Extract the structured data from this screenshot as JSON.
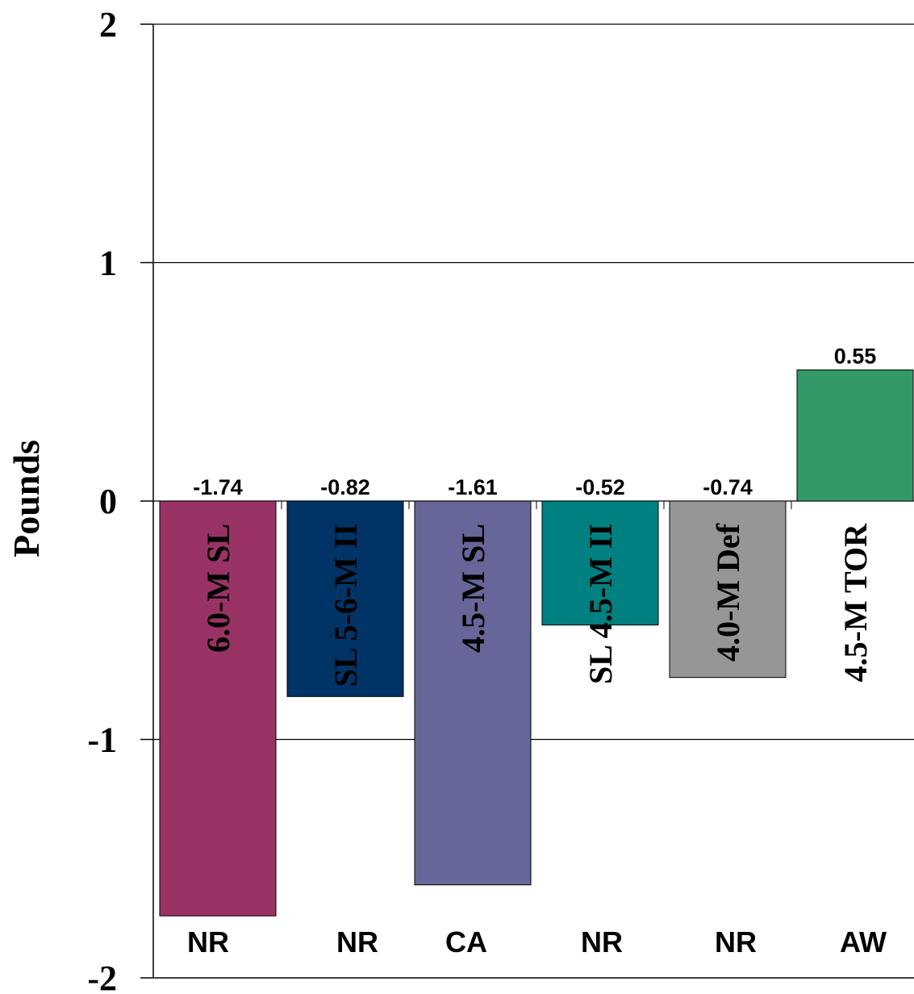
{
  "chart_data": {
    "type": "bar",
    "ylabel": "Pounds",
    "ylim": [
      -2,
      2
    ],
    "yticks": [
      "2",
      "1",
      "0",
      "-1",
      "-2"
    ],
    "grid": true,
    "categories": [
      "6.0-M SL",
      "SL 5-6-M II",
      "4.5-M SL",
      "SL 4.5-M II",
      "4.0-M Def",
      "4.5-M TOR"
    ],
    "groups": [
      "NR",
      "NR",
      "CA",
      "NR",
      "NR",
      "AW"
    ],
    "values": [
      -1.74,
      -0.82,
      -1.61,
      -0.52,
      -0.74,
      0.55
    ],
    "value_labels": [
      "-1.74",
      "-0.82",
      "-1.61",
      "-0.52",
      "-0.74",
      "0.55"
    ],
    "colors": [
      "#993366",
      "#003366",
      "#666699",
      "#008080",
      "#969696",
      "#339966"
    ]
  }
}
